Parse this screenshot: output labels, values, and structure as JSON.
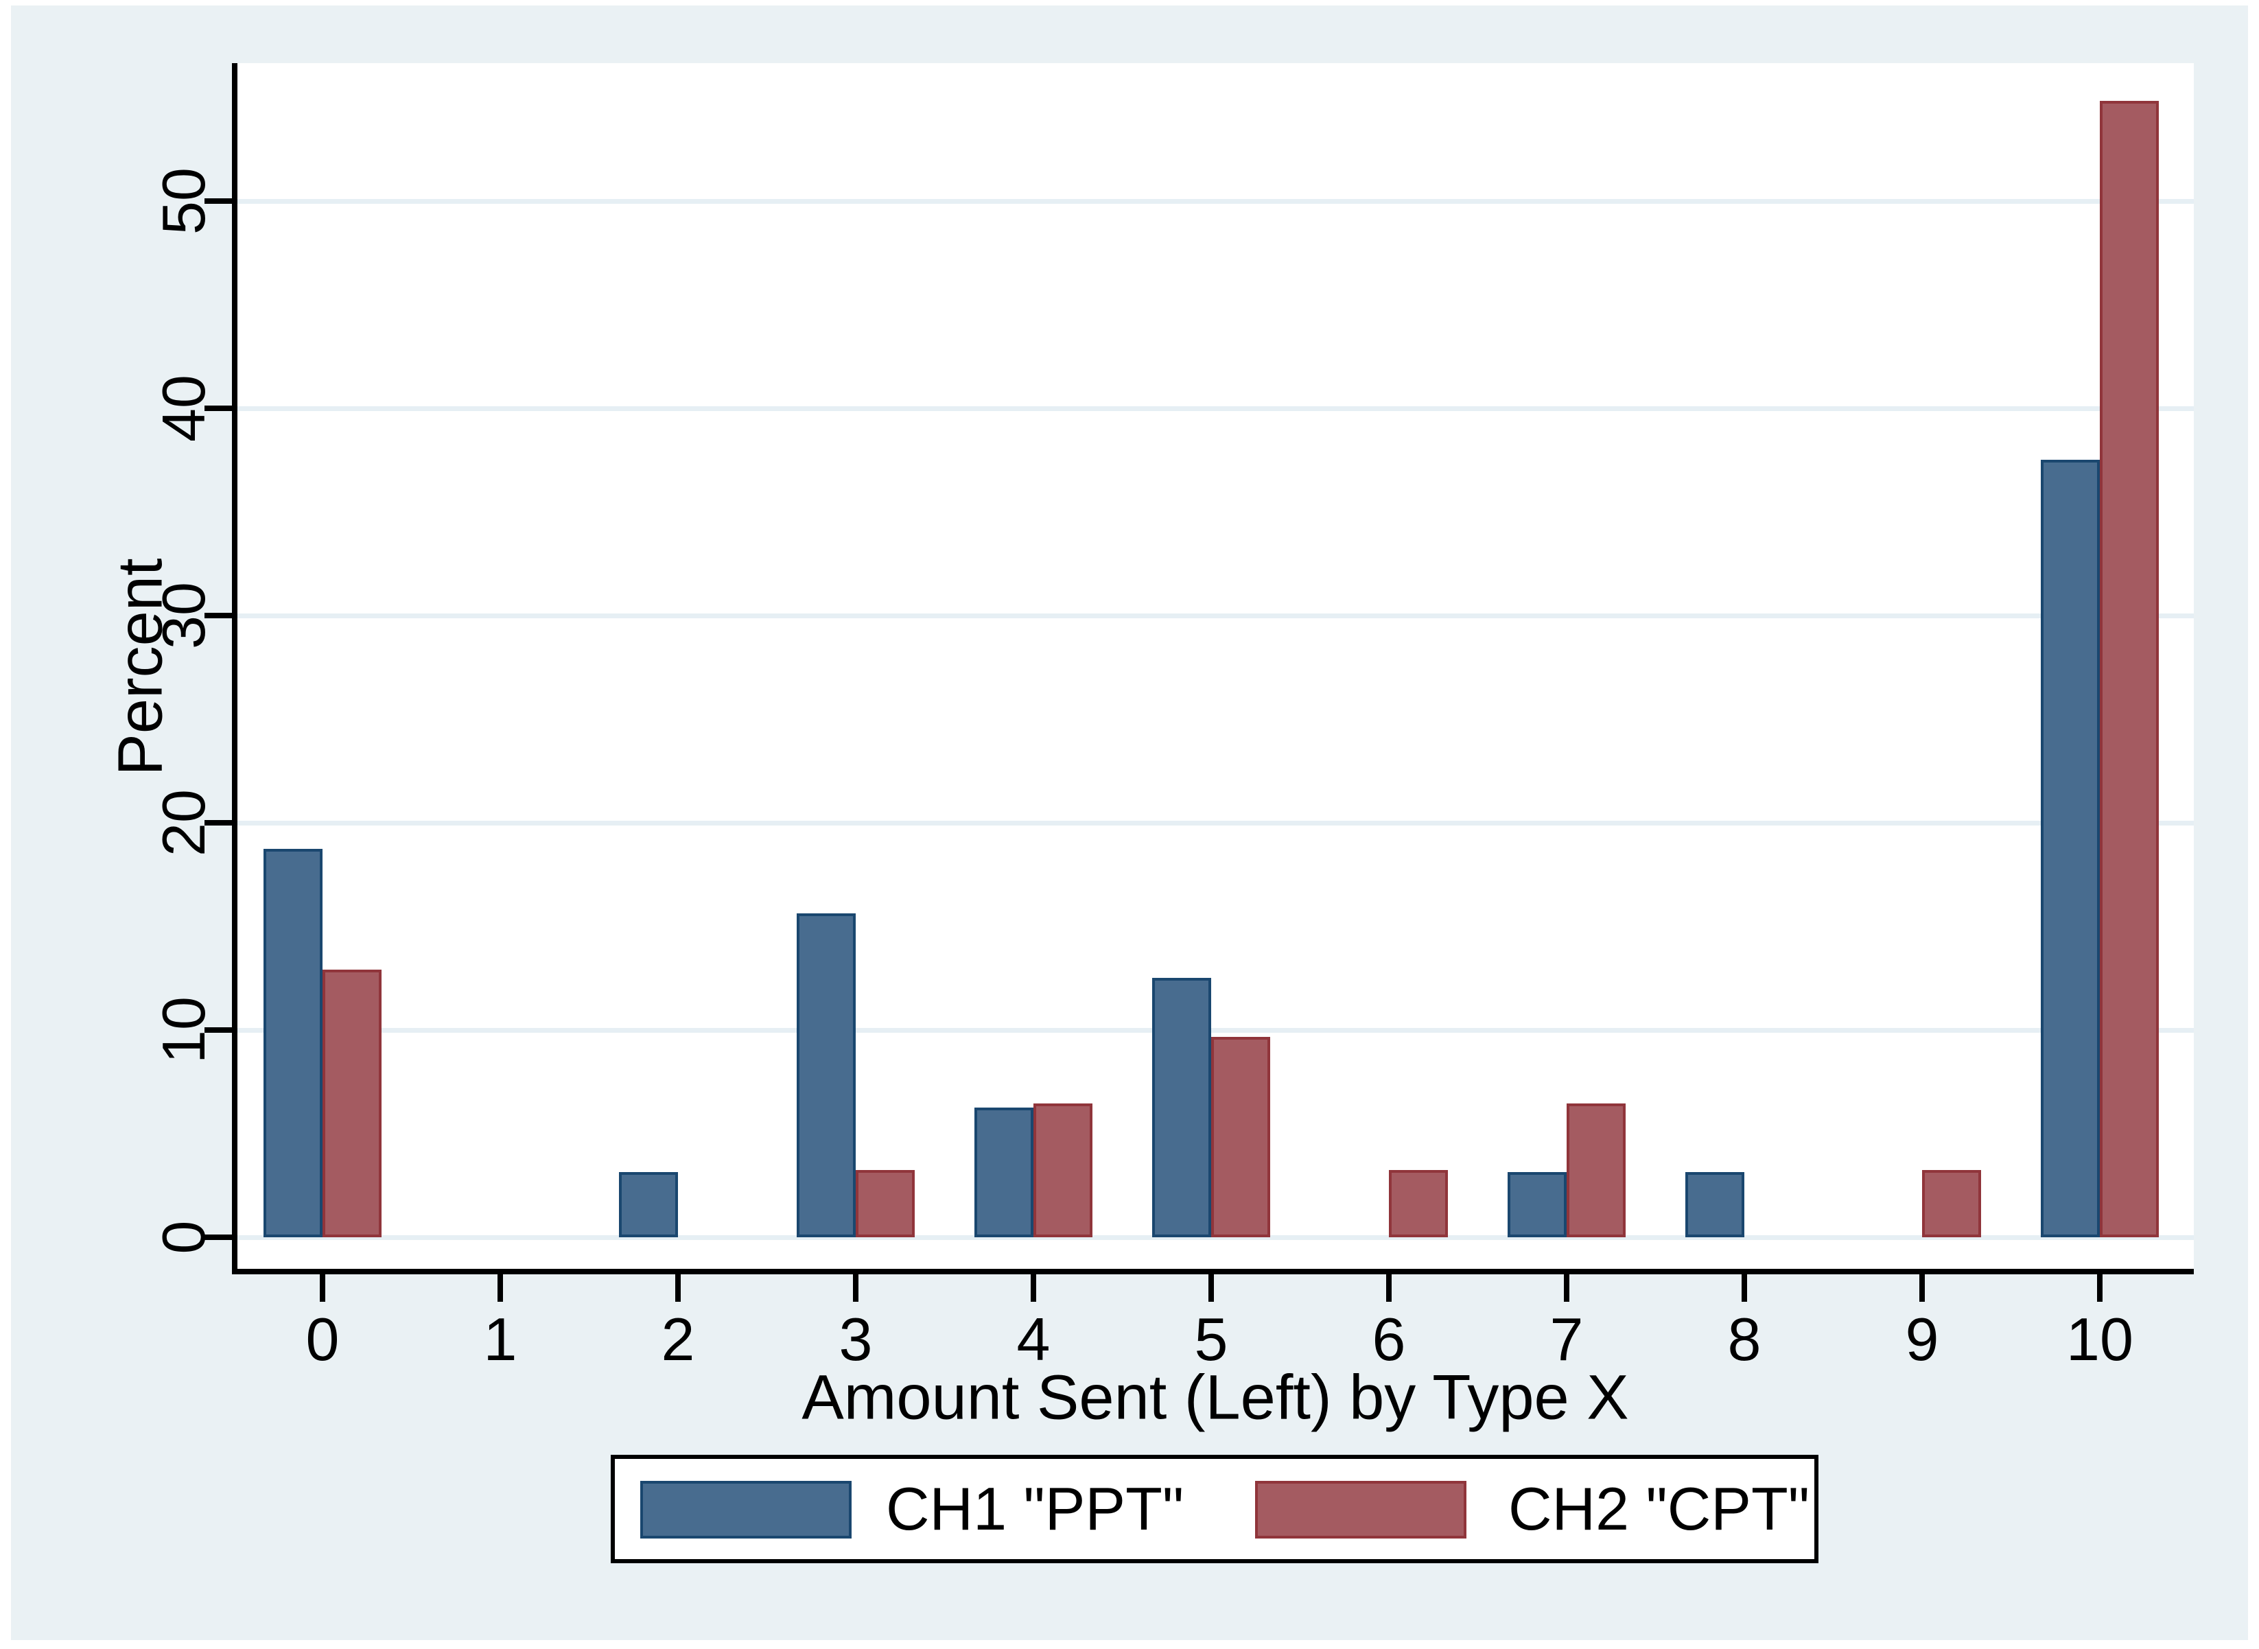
{
  "figure": {
    "page_background": "#FFFFFF",
    "canvas_color": "#EAF1F4",
    "plot_background": "#FFFFFF",
    "gridline_color": "#E6EFF4",
    "axis_color": "#000000",
    "text_color": "#000000"
  },
  "chart_data": {
    "type": "bar",
    "categories": [
      "0",
      "1",
      "2",
      "3",
      "4",
      "5",
      "6",
      "7",
      "8",
      "9",
      "10"
    ],
    "series": [
      {
        "name": "CH1 \"PPT\"",
        "color": "#486C8F",
        "border_color": "#1A476F",
        "values": [
          18.75,
          0,
          3.13,
          15.63,
          6.25,
          12.5,
          0,
          3.13,
          3.13,
          0,
          37.5
        ]
      },
      {
        "name": "CH2 \"CPT\"",
        "color": "#A45B61",
        "border_color": "#90353B",
        "values": [
          12.9,
          0,
          0,
          3.23,
          6.45,
          9.68,
          3.23,
          6.45,
          0,
          3.23,
          54.84
        ]
      }
    ],
    "title": "",
    "xlabel": "Amount Sent (Left) by Type X",
    "ylabel": "Percent",
    "ylim": [
      0,
      56.6
    ],
    "yticks": [
      0,
      10,
      20,
      30,
      40,
      50
    ],
    "grid": true,
    "legend_position": "bottom"
  }
}
